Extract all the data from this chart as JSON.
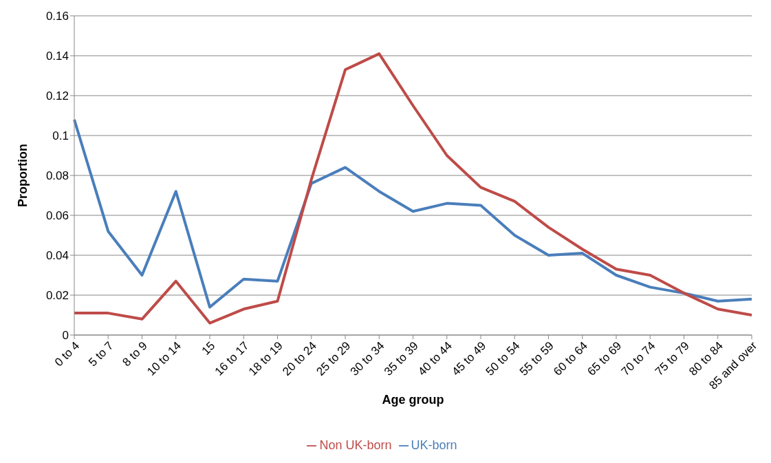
{
  "chart_data": {
    "type": "line",
    "xlabel": "Age group",
    "ylabel": "Proportion",
    "categories": [
      "0 to 4",
      "5 to 7",
      "8 to 9",
      "10 to 14",
      "15",
      "16 to 17",
      "18 to 19",
      "20 to 24",
      "25 to 29",
      "30 to 34",
      "35 to 39",
      "40 to 44",
      "45 to 49",
      "50 to 54",
      "55 to 59",
      "60 to 64",
      "65 to 69",
      "70 to 74",
      "75 to 79",
      "80 to 84",
      "85 and over"
    ],
    "series": [
      {
        "name": "UK-born",
        "color": "#4a7ebb",
        "values": [
          0.108,
          0.052,
          0.03,
          0.072,
          0.014,
          0.028,
          0.027,
          0.076,
          0.084,
          0.072,
          0.062,
          0.066,
          0.065,
          0.05,
          0.04,
          0.041,
          0.03,
          0.024,
          0.021,
          0.017,
          0.018
        ]
      },
      {
        "name": "Non UK-born",
        "color": "#be4b48",
        "values": [
          0.011,
          0.011,
          0.008,
          0.027,
          0.006,
          0.013,
          0.017,
          0.078,
          0.133,
          0.141,
          0.115,
          0.09,
          0.074,
          0.067,
          0.054,
          0.043,
          0.033,
          0.03,
          0.021,
          0.013,
          0.01
        ]
      }
    ],
    "ylim": [
      0,
      0.16
    ],
    "yticks": [
      0,
      0.02,
      0.04,
      0.06,
      0.08,
      0.1,
      0.12,
      0.14,
      0.16
    ],
    "grid": "y",
    "legend": "bottom",
    "marker": "none",
    "line_style": "solid"
  }
}
